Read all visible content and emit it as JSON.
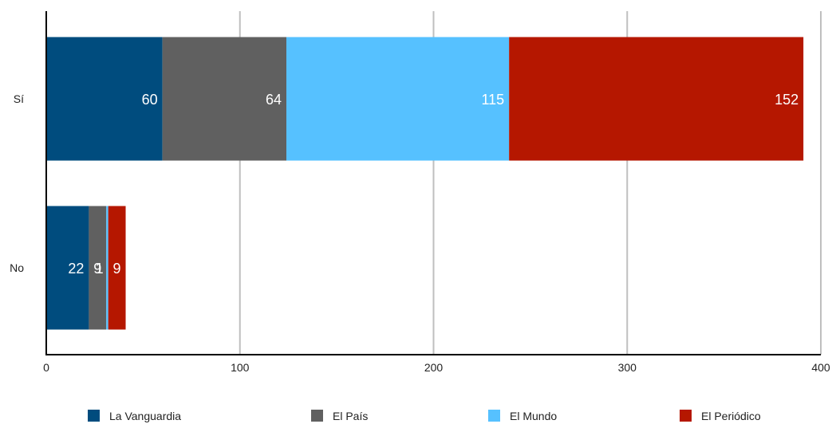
{
  "chart_data": {
    "type": "bar",
    "orientation": "horizontal",
    "stacked": true,
    "categories": [
      "Sí",
      "No"
    ],
    "series": [
      {
        "name": "La Vanguardia",
        "values": [
          60,
          22
        ],
        "color": "#004c7e"
      },
      {
        "name": "El País",
        "values": [
          64,
          9
        ],
        "color": "#606060"
      },
      {
        "name": "El Mundo",
        "values": [
          115,
          1
        ],
        "color": "#56c1ff"
      },
      {
        "name": "El Periódico",
        "values": [
          152,
          9
        ],
        "color": "#b51700"
      }
    ],
    "data_labels": [
      [
        "60",
        "64",
        "115",
        "152"
      ],
      [
        "22",
        "9",
        "1",
        "9"
      ]
    ],
    "x_ticks": [
      0,
      100,
      200,
      300,
      400
    ],
    "xlim": [
      0,
      400
    ],
    "title": "",
    "xlabel": "",
    "ylabel": "",
    "grid": "vertical",
    "legend": "bottom"
  }
}
